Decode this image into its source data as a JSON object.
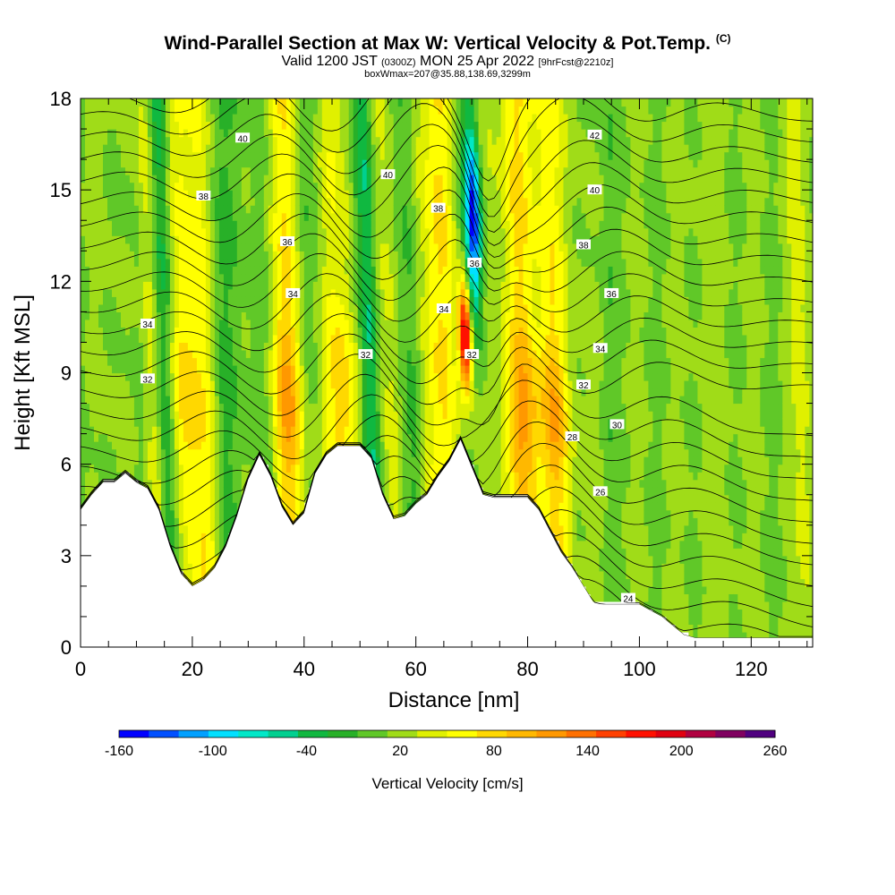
{
  "header": {
    "title": "Wind-Parallel Section at Max W: Vertical Velocity & Pot.Temp.",
    "title_mark": "(C)",
    "subtitle_a": "Valid 1200 JST",
    "subtitle_b": "(0300Z)",
    "subtitle_c": "MON 25 Apr 2022",
    "subtitle_d": "[9hrFcst@2210z]",
    "subtitle2": "boxWmax=207@35.88,138.69,3299m"
  },
  "chart_data": {
    "type": "heatmap",
    "title": "Wind-Parallel Section at Max W: Vertical Velocity & Pot.Temp.",
    "xlabel": "Distance [nm]",
    "ylabel": "Height [Kft MSL]",
    "xlim": [
      0,
      131
    ],
    "ylim": [
      0,
      18
    ],
    "x_ticks": [
      "0",
      "20",
      "40",
      "60",
      "80",
      "100",
      "120"
    ],
    "y_ticks": [
      "0",
      "3",
      "6",
      "9",
      "12",
      "15",
      "18"
    ],
    "colorbar": {
      "label": "Vertical Velocity [cm/s]",
      "min": -160,
      "max": 260,
      "tick_labels": [
        "-160",
        "-100",
        "-40",
        "20",
        "80",
        "140",
        "200",
        "260"
      ],
      "colors": [
        "#0000ff",
        "#0050ff",
        "#00a0ff",
        "#00e0ff",
        "#00e8c8",
        "#00d090",
        "#10b840",
        "#28b028",
        "#60c828",
        "#a0dc18",
        "#e0f000",
        "#ffff00",
        "#ffd800",
        "#ffb800",
        "#ff9800",
        "#ff7000",
        "#ff4000",
        "#ff1000",
        "#e00010",
        "#b00040",
        "#800060",
        "#500080"
      ]
    },
    "terrain_kft": [
      [
        0,
        4.5
      ],
      [
        2,
        5.0
      ],
      [
        4,
        5.4
      ],
      [
        6,
        5.4
      ],
      [
        8,
        5.7
      ],
      [
        10,
        5.4
      ],
      [
        12,
        5.2
      ],
      [
        14,
        4.5
      ],
      [
        16,
        3.3
      ],
      [
        18,
        2.4
      ],
      [
        20,
        2.0
      ],
      [
        22,
        2.2
      ],
      [
        24,
        2.6
      ],
      [
        26,
        3.3
      ],
      [
        28,
        4.3
      ],
      [
        30,
        5.5
      ],
      [
        32,
        6.3
      ],
      [
        34,
        5.6
      ],
      [
        36,
        4.6
      ],
      [
        38,
        4.0
      ],
      [
        40,
        4.4
      ],
      [
        42,
        5.7
      ],
      [
        44,
        6.3
      ],
      [
        46,
        6.6
      ],
      [
        48,
        6.6
      ],
      [
        50,
        6.6
      ],
      [
        52,
        6.2
      ],
      [
        54,
        5.0
      ],
      [
        56,
        4.2
      ],
      [
        58,
        4.3
      ],
      [
        60,
        4.7
      ],
      [
        62,
        5.0
      ],
      [
        64,
        5.6
      ],
      [
        66,
        6.1
      ],
      [
        68,
        6.8
      ],
      [
        70,
        5.9
      ],
      [
        72,
        5.0
      ],
      [
        74,
        4.9
      ],
      [
        76,
        4.9
      ],
      [
        78,
        4.9
      ],
      [
        80,
        4.9
      ],
      [
        82,
        4.5
      ],
      [
        84,
        3.8
      ],
      [
        86,
        3.1
      ],
      [
        88,
        2.6
      ],
      [
        90,
        2.0
      ],
      [
        92,
        1.4
      ],
      [
        94,
        1.4
      ],
      [
        96,
        1.4
      ],
      [
        98,
        1.4
      ],
      [
        100,
        1.4
      ],
      [
        102,
        1.2
      ],
      [
        104,
        1.0
      ],
      [
        106,
        0.7
      ],
      [
        108,
        0.4
      ],
      [
        110,
        0.3
      ],
      [
        112,
        0.3
      ],
      [
        116,
        0.3
      ],
      [
        120,
        0.3
      ],
      [
        124,
        0.3
      ],
      [
        128,
        0.3
      ],
      [
        131,
        0.3
      ]
    ],
    "velocity_features": [
      {
        "x": 5,
        "w": 2.5,
        "value": 20
      },
      {
        "x": 13,
        "w": 1.2,
        "value": 60
      },
      {
        "x": 15,
        "w": 1.5,
        "value": -60
      },
      {
        "x": 18,
        "w": 2.0,
        "value": 80
      },
      {
        "x": 22,
        "w": 2.2,
        "value": 50
      },
      {
        "x": 25,
        "w": 1.5,
        "value": -20
      },
      {
        "x": 37,
        "w": 2.0,
        "value": 110
      },
      {
        "x": 43,
        "w": 1.8,
        "value": -10
      },
      {
        "x": 46.5,
        "w": 2.5,
        "value": 90
      },
      {
        "x": 51.5,
        "w": 1.2,
        "value": -60
      },
      {
        "x": 55,
        "w": 1.5,
        "value": 40
      },
      {
        "x": 59,
        "w": 1.5,
        "value": -20
      },
      {
        "x": 62,
        "w": 1.6,
        "value": 40
      },
      {
        "x": 65.5,
        "w": 1.8,
        "value": 60
      },
      {
        "x": 69,
        "w": 0.8,
        "value": 207
      },
      {
        "x": 71,
        "w": 1.0,
        "value": -160
      },
      {
        "x": 74,
        "w": 2.0,
        "value": 20
      },
      {
        "x": 79,
        "w": 2.2,
        "value": 110
      },
      {
        "x": 84.5,
        "w": 2.0,
        "value": 100
      },
      {
        "x": 90,
        "w": 2.0,
        "value": 20
      },
      {
        "x": 113,
        "w": 2.5,
        "value": 10
      },
      {
        "x": 129,
        "w": 1.5,
        "value": 40
      }
    ],
    "theta_contours": {
      "labels": [
        {
          "text": "40",
          "x": 29,
          "y": 16.7
        },
        {
          "text": "38",
          "x": 22,
          "y": 14.8
        },
        {
          "text": "36",
          "x": 37,
          "y": 13.3
        },
        {
          "text": "34",
          "x": 38,
          "y": 11.6
        },
        {
          "text": "34",
          "x": 12,
          "y": 10.6
        },
        {
          "text": "32",
          "x": 12,
          "y": 8.8
        },
        {
          "text": "40",
          "x": 55,
          "y": 15.5
        },
        {
          "text": "38",
          "x": 64,
          "y": 14.4
        },
        {
          "text": "36",
          "x": 70.5,
          "y": 12.6
        },
        {
          "text": "34",
          "x": 65,
          "y": 11.1
        },
        {
          "text": "32",
          "x": 51,
          "y": 9.6
        },
        {
          "text": "32",
          "x": 70,
          "y": 9.6
        },
        {
          "text": "42",
          "x": 92,
          "y": 16.8
        },
        {
          "text": "40",
          "x": 92,
          "y": 15.0
        },
        {
          "text": "38",
          "x": 90,
          "y": 13.2
        },
        {
          "text": "36",
          "x": 95,
          "y": 11.6
        },
        {
          "text": "34",
          "x": 93,
          "y": 9.8
        },
        {
          "text": "32",
          "x": 90,
          "y": 8.6
        },
        {
          "text": "30",
          "x": 96,
          "y": 7.3
        },
        {
          "text": "28",
          "x": 88,
          "y": 6.9
        },
        {
          "text": "26",
          "x": 93,
          "y": 5.1
        },
        {
          "text": "24",
          "x": 98,
          "y": 1.6
        }
      ]
    }
  }
}
